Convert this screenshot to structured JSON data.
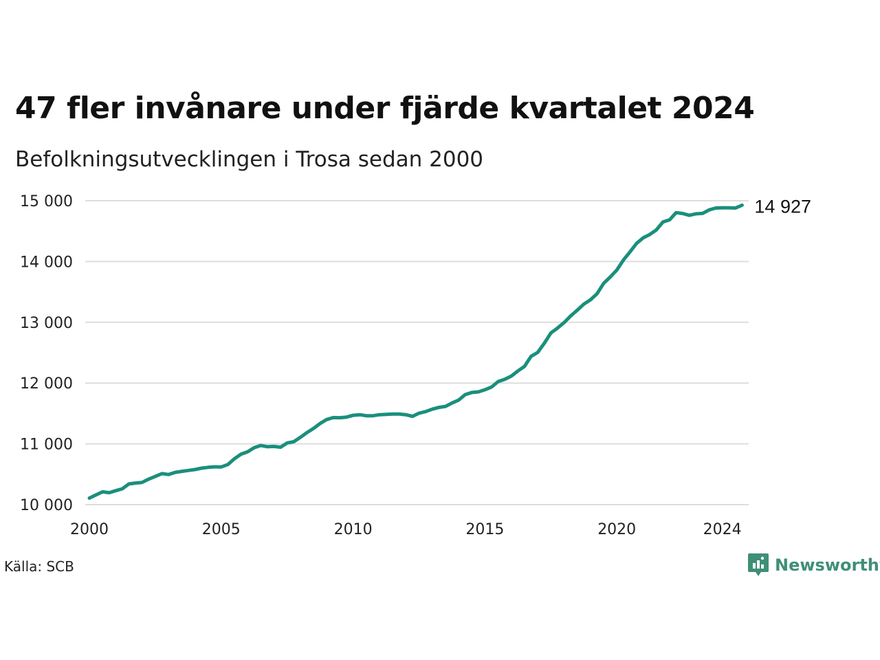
{
  "title": "47 fler invånare under fjärde kvartalet 2024",
  "subtitle": "Befolkningsutvecklingen i Trosa sedan 2000",
  "source": "Källa: SCB",
  "brand": {
    "name": "Newsworthy",
    "icon": "newsworthy-logo-icon"
  },
  "colors": {
    "line": "#1a8f7c",
    "grid": "#dddddd",
    "brand": "#3f8f77"
  },
  "chart_data": {
    "type": "line",
    "title": "47 fler invånare under fjärde kvartalet 2024",
    "xlabel": "",
    "ylabel": "",
    "xlim": [
      2000,
      2025
    ],
    "ylim": [
      10000,
      15000
    ],
    "x_ticks": [
      2000,
      2005,
      2010,
      2015,
      2020,
      2024
    ],
    "y_ticks": [
      10000,
      11000,
      12000,
      13000,
      14000,
      15000
    ],
    "y_tick_labels": [
      "10 000",
      "11 000",
      "12 000",
      "13 000",
      "14 000",
      "15 000"
    ],
    "grid": "horizontal",
    "end_label": "14 927",
    "series": [
      {
        "values": [
          [
            "2000-Q1",
            10107
          ],
          [
            "2000-Q2",
            10160
          ],
          [
            "2000-Q3",
            10210
          ],
          [
            "2000-Q4",
            10197
          ],
          [
            "2001-Q1",
            10230
          ],
          [
            "2001-Q2",
            10260
          ],
          [
            "2001-Q3",
            10340
          ],
          [
            "2001-Q4",
            10355
          ],
          [
            "2002-Q1",
            10365
          ],
          [
            "2002-Q2",
            10420
          ],
          [
            "2002-Q3",
            10465
          ],
          [
            "2002-Q4",
            10510
          ],
          [
            "2003-Q1",
            10495
          ],
          [
            "2003-Q2",
            10530
          ],
          [
            "2003-Q3",
            10548
          ],
          [
            "2003-Q4",
            10562
          ],
          [
            "2004-Q1",
            10577
          ],
          [
            "2004-Q2",
            10600
          ],
          [
            "2004-Q3",
            10613
          ],
          [
            "2004-Q4",
            10622
          ],
          [
            "2005-Q1",
            10620
          ],
          [
            "2005-Q2",
            10660
          ],
          [
            "2005-Q3",
            10755
          ],
          [
            "2005-Q4",
            10830
          ],
          [
            "2006-Q1",
            10870
          ],
          [
            "2006-Q2",
            10938
          ],
          [
            "2006-Q3",
            10973
          ],
          [
            "2006-Q4",
            10952
          ],
          [
            "2007-Q1",
            10957
          ],
          [
            "2007-Q2",
            10945
          ],
          [
            "2007-Q3",
            11015
          ],
          [
            "2007-Q4",
            11035
          ],
          [
            "2008-Q1",
            11108
          ],
          [
            "2008-Q2",
            11185
          ],
          [
            "2008-Q3",
            11255
          ],
          [
            "2008-Q4",
            11335
          ],
          [
            "2009-Q1",
            11400
          ],
          [
            "2009-Q2",
            11432
          ],
          [
            "2009-Q3",
            11430
          ],
          [
            "2009-Q4",
            11440
          ],
          [
            "2010-Q1",
            11470
          ],
          [
            "2010-Q2",
            11480
          ],
          [
            "2010-Q3",
            11463
          ],
          [
            "2010-Q4",
            11463
          ],
          [
            "2011-Q1",
            11480
          ],
          [
            "2011-Q2",
            11485
          ],
          [
            "2011-Q3",
            11490
          ],
          [
            "2011-Q4",
            11490
          ],
          [
            "2012-Q1",
            11480
          ],
          [
            "2012-Q2",
            11452
          ],
          [
            "2012-Q3",
            11505
          ],
          [
            "2012-Q4",
            11530
          ],
          [
            "2013-Q1",
            11570
          ],
          [
            "2013-Q2",
            11600
          ],
          [
            "2013-Q3",
            11615
          ],
          [
            "2013-Q4",
            11672
          ],
          [
            "2014-Q1",
            11720
          ],
          [
            "2014-Q2",
            11810
          ],
          [
            "2014-Q3",
            11845
          ],
          [
            "2014-Q4",
            11855
          ],
          [
            "2015-Q1",
            11890
          ],
          [
            "2015-Q2",
            11935
          ],
          [
            "2015-Q3",
            12025
          ],
          [
            "2015-Q4",
            12062
          ],
          [
            "2016-Q1",
            12115
          ],
          [
            "2016-Q2",
            12200
          ],
          [
            "2016-Q3",
            12275
          ],
          [
            "2016-Q4",
            12440
          ],
          [
            "2017-Q1",
            12505
          ],
          [
            "2017-Q2",
            12655
          ],
          [
            "2017-Q3",
            12825
          ],
          [
            "2017-Q4",
            12905
          ],
          [
            "2018-Q1",
            12995
          ],
          [
            "2018-Q2",
            13105
          ],
          [
            "2018-Q3",
            13200
          ],
          [
            "2018-Q4",
            13300
          ],
          [
            "2019-Q1",
            13370
          ],
          [
            "2019-Q2",
            13470
          ],
          [
            "2019-Q3",
            13640
          ],
          [
            "2019-Q4",
            13745
          ],
          [
            "2020-Q1",
            13860
          ],
          [
            "2020-Q2",
            14025
          ],
          [
            "2020-Q3",
            14160
          ],
          [
            "2020-Q4",
            14300
          ],
          [
            "2021-Q1",
            14390
          ],
          [
            "2021-Q2",
            14445
          ],
          [
            "2021-Q3",
            14520
          ],
          [
            "2021-Q4",
            14650
          ],
          [
            "2022-Q1",
            14685
          ],
          [
            "2022-Q2",
            14805
          ],
          [
            "2022-Q3",
            14790
          ],
          [
            "2022-Q4",
            14760
          ],
          [
            "2023-Q1",
            14785
          ],
          [
            "2023-Q2",
            14792
          ],
          [
            "2023-Q3",
            14850
          ],
          [
            "2023-Q4",
            14880
          ],
          [
            "2024-Q1",
            14884
          ],
          [
            "2024-Q2",
            14884
          ],
          [
            "2024-Q3",
            14880
          ],
          [
            "2024-Q4",
            14927
          ]
        ]
      }
    ]
  }
}
